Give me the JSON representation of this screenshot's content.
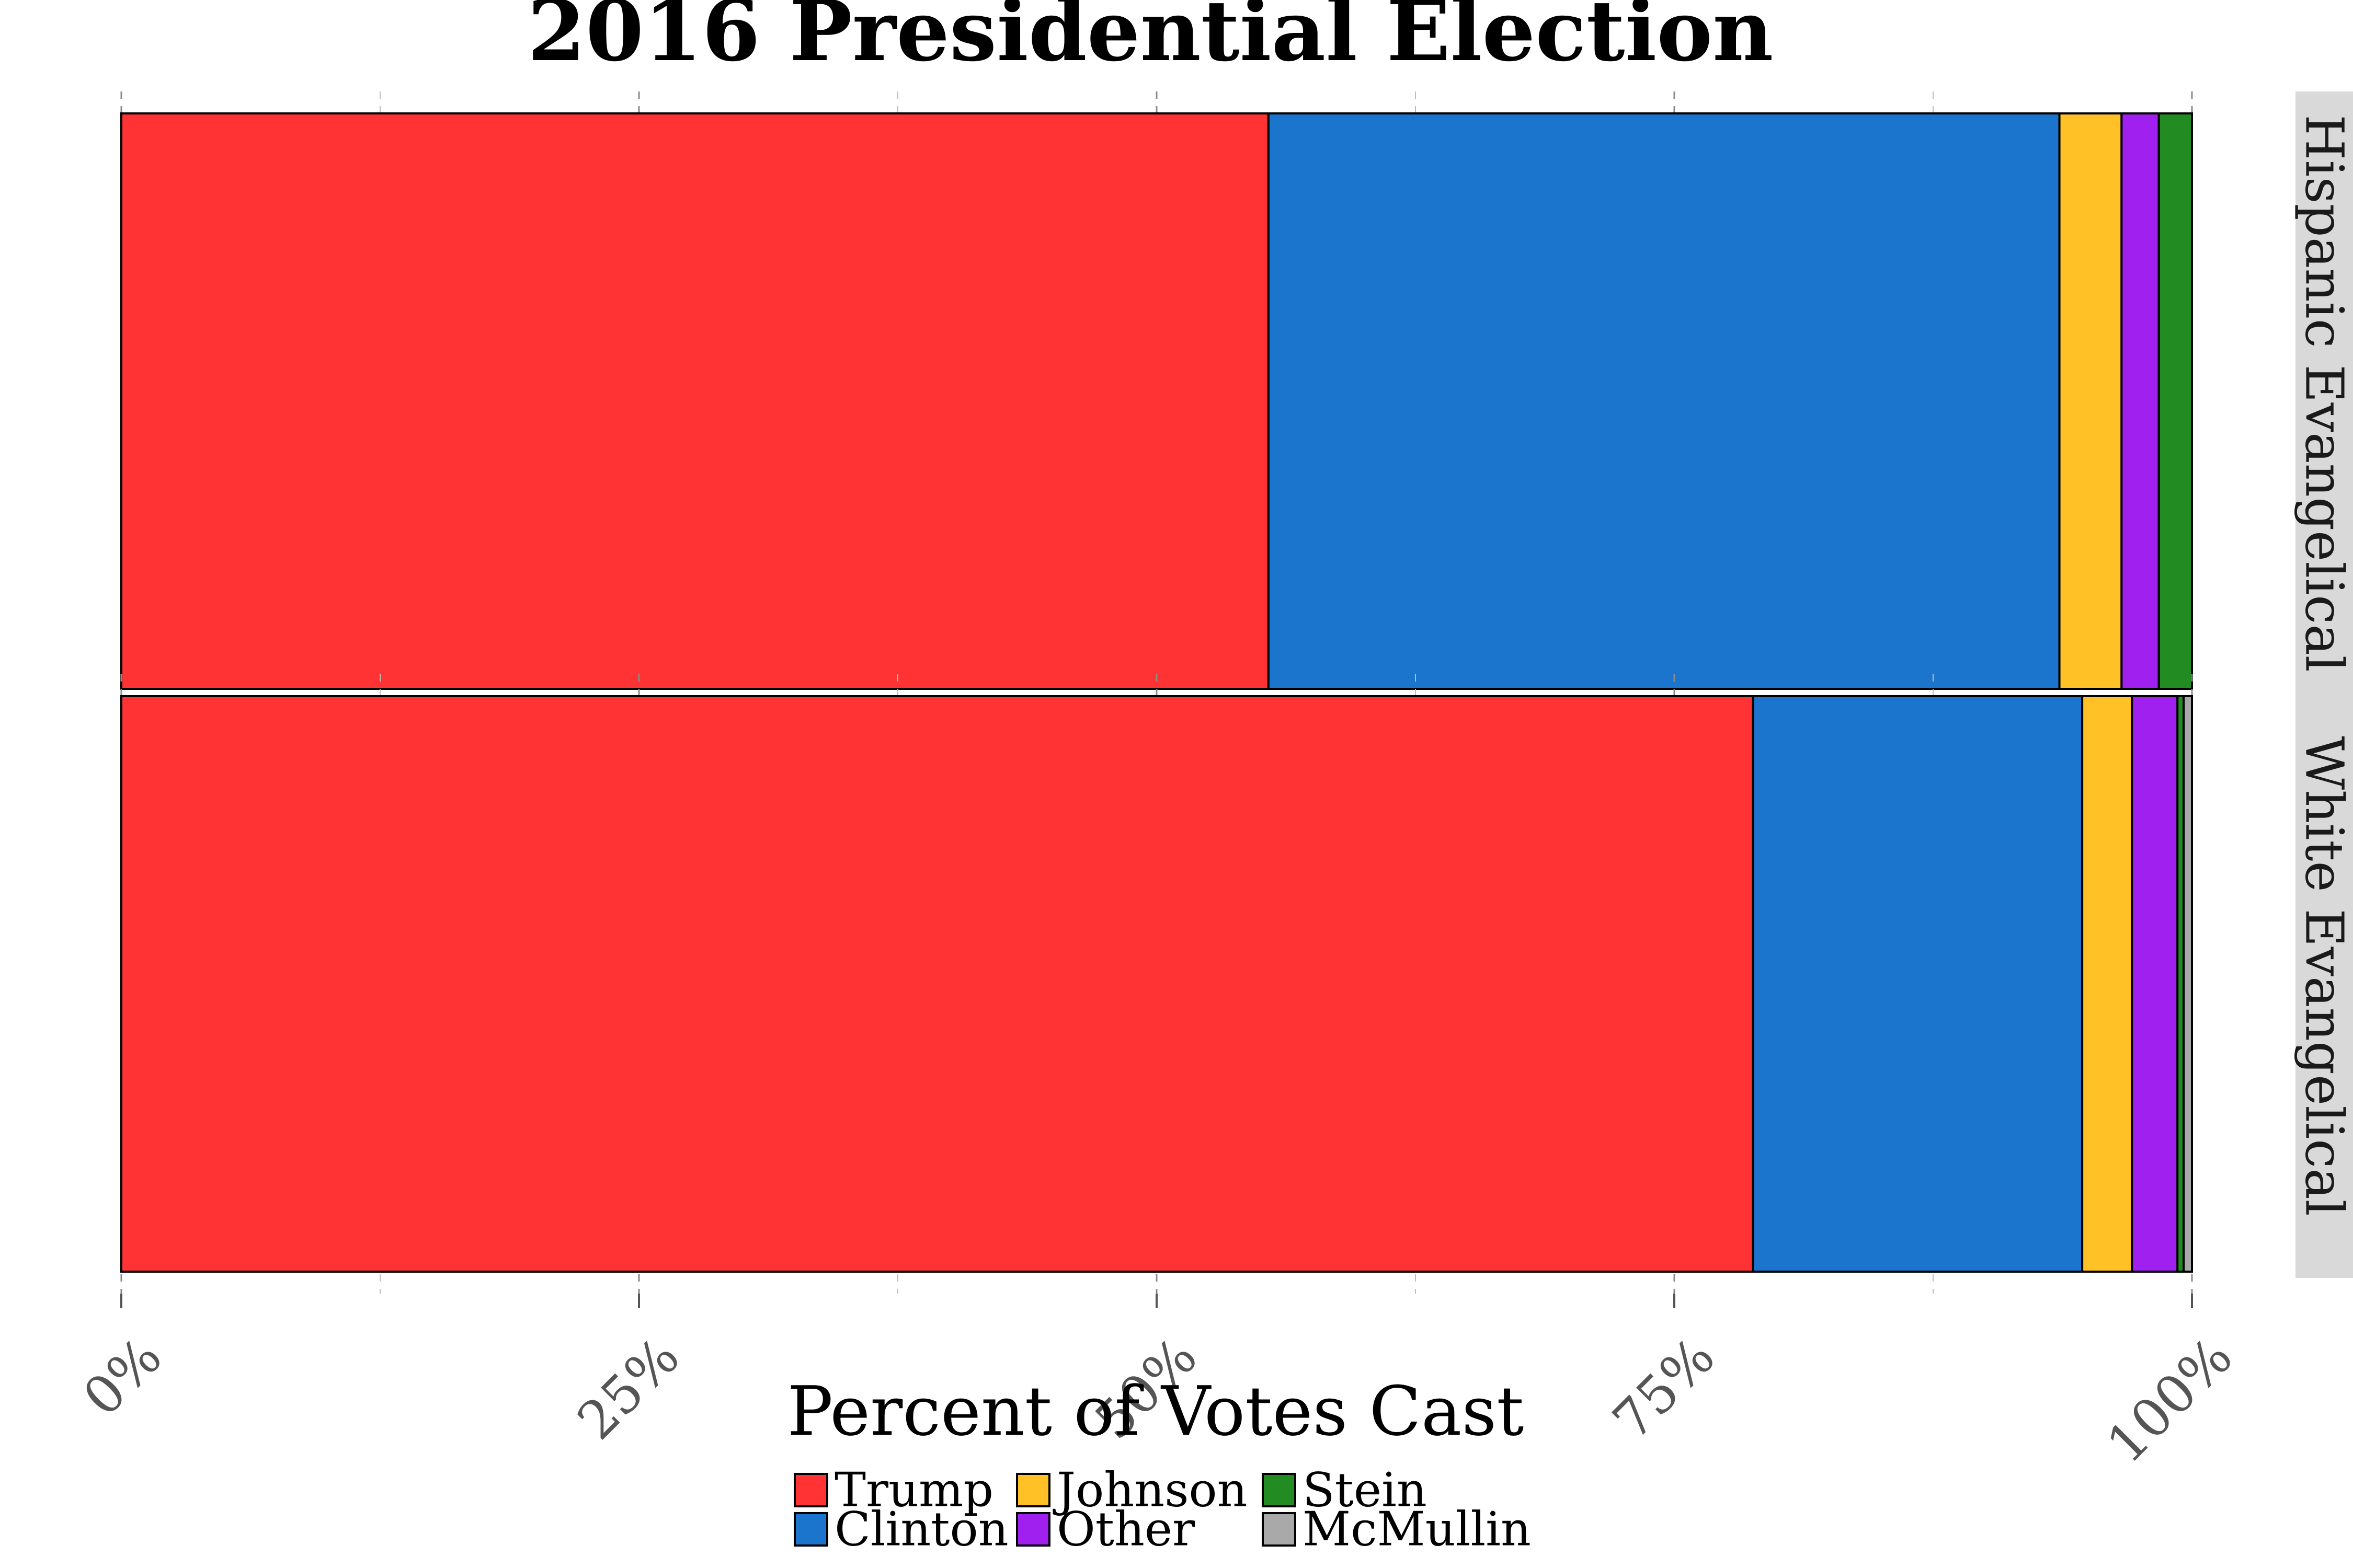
{
  "chart_data": {
    "type": "bar",
    "orientation": "horizontal",
    "stacked": true,
    "title": "2016 Presidential Election",
    "xlabel": "Percent of Votes Cast",
    "xlim": [
      0,
      100
    ],
    "x_ticks": [
      0,
      25,
      50,
      75,
      100
    ],
    "x_tick_labels": [
      "0%",
      "25%",
      "50%",
      "75%",
      "100%"
    ],
    "grid": true,
    "legend_position": "bottom",
    "facets": [
      "Hispanic Evangelical",
      "White Evangelical"
    ],
    "series": [
      {
        "name": "Trump",
        "color": "#ff3333",
        "values": [
          55.4,
          78.8
        ]
      },
      {
        "name": "Clinton",
        "color": "#1b75cc",
        "values": [
          38.2,
          15.9
        ]
      },
      {
        "name": "Johnson",
        "color": "#ffc125",
        "values": [
          3.0,
          2.4
        ]
      },
      {
        "name": "Other",
        "color": "#a020f0",
        "values": [
          1.8,
          2.2
        ]
      },
      {
        "name": "Stein",
        "color": "#228b22",
        "values": [
          1.6,
          0.3
        ]
      },
      {
        "name": "McMullin",
        "color": "#a9a9a9",
        "values": [
          0.0,
          0.4
        ]
      }
    ]
  }
}
